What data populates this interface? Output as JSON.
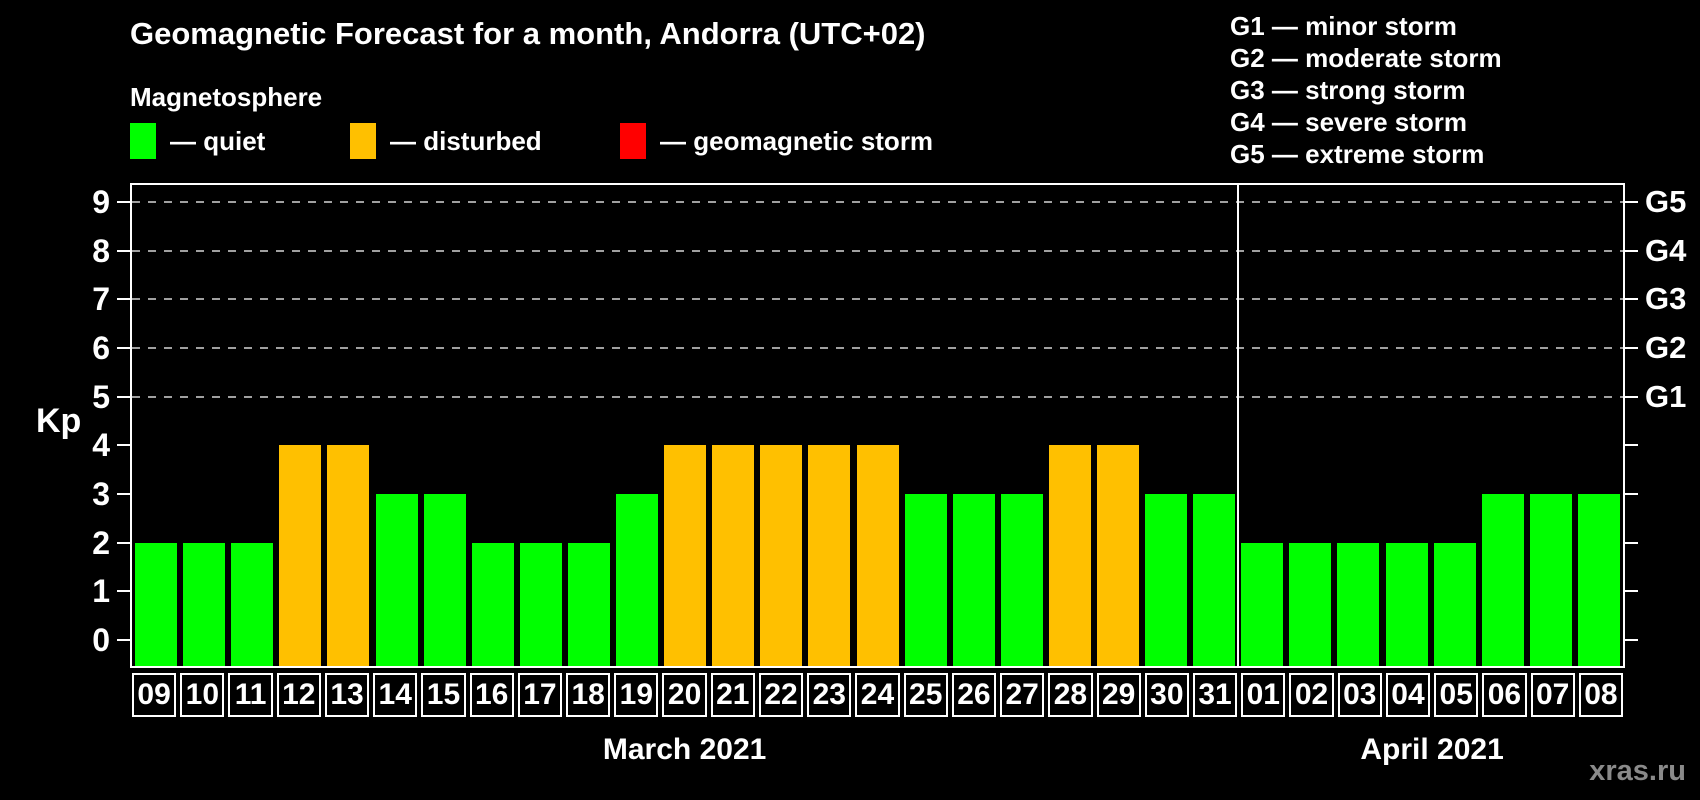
{
  "title": "Geomagnetic Forecast for a month, Andorra (UTC+02)",
  "subtitle": "Magnetosphere",
  "legend": {
    "items": [
      {
        "name": "quiet",
        "label": "— quiet",
        "color": "#00FF00"
      },
      {
        "name": "disturbed",
        "label": "— disturbed",
        "color": "#FFC000"
      },
      {
        "name": "storm",
        "label": "— geomagnetic storm",
        "color": "#FF0000"
      }
    ]
  },
  "g_legend": {
    "items": [
      "G1 — minor storm",
      "G2 — moderate storm",
      "G3 — strong storm",
      "G4 — severe storm",
      "G5 — extreme storm"
    ]
  },
  "watermark": "xras.ru",
  "chart_data": {
    "type": "bar",
    "title": "Geomagnetic Forecast for a month, Andorra (UTC+02)",
    "ylabel": "Kp",
    "ylim": [
      0,
      9
    ],
    "yticks": [
      0,
      1,
      2,
      3,
      4,
      5,
      6,
      7,
      8,
      9
    ],
    "grid_levels": [
      5,
      6,
      7,
      8,
      9
    ],
    "grid_on": true,
    "legend_position": "top-left",
    "right_axis_labels": [
      {
        "label": "G1",
        "kp": 5
      },
      {
        "label": "G2",
        "kp": 6
      },
      {
        "label": "G3",
        "kp": 7
      },
      {
        "label": "G4",
        "kp": 8
      },
      {
        "label": "G5",
        "kp": 9
      }
    ],
    "status_colors": {
      "quiet": "#00FF00",
      "disturbed": "#FFC000",
      "storm": "#FF0000"
    },
    "months": [
      {
        "label": "March 2021",
        "key": "march",
        "days": [
          "09",
          "10",
          "11",
          "12",
          "13",
          "14",
          "15",
          "16",
          "17",
          "18",
          "19",
          "20",
          "21",
          "22",
          "23",
          "24",
          "25",
          "26",
          "27",
          "28",
          "29",
          "30",
          "31"
        ],
        "values": [
          2,
          2,
          2,
          4,
          4,
          3,
          3,
          2,
          2,
          2,
          3,
          4,
          4,
          4,
          4,
          4,
          3,
          3,
          3,
          4,
          4,
          3,
          3
        ],
        "status": [
          "quiet",
          "quiet",
          "quiet",
          "disturbed",
          "disturbed",
          "quiet",
          "quiet",
          "quiet",
          "quiet",
          "quiet",
          "quiet",
          "disturbed",
          "disturbed",
          "disturbed",
          "disturbed",
          "disturbed",
          "quiet",
          "quiet",
          "quiet",
          "disturbed",
          "disturbed",
          "quiet",
          "quiet"
        ]
      },
      {
        "label": "April 2021",
        "key": "april",
        "days": [
          "01",
          "02",
          "03",
          "04",
          "05",
          "06",
          "07",
          "08"
        ],
        "values": [
          2,
          2,
          2,
          2,
          2,
          3,
          3,
          3
        ],
        "status": [
          "quiet",
          "quiet",
          "quiet",
          "quiet",
          "quiet",
          "quiet",
          "quiet",
          "quiet"
        ]
      }
    ]
  }
}
